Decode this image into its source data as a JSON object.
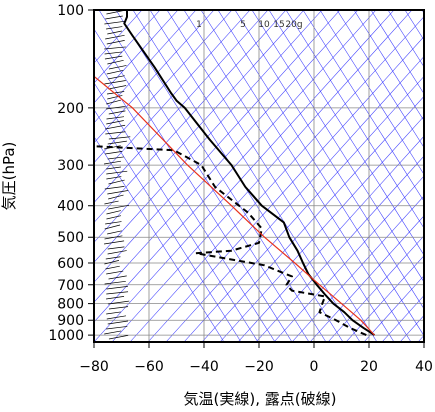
{
  "chart_data": {
    "type": "line",
    "title": "",
    "xlabel": "気温(実線), 露点(破線)",
    "ylabel": "気圧(hPa)",
    "xlim": [
      -80,
      40
    ],
    "ylim": [
      1050,
      100
    ],
    "y_scale": "log",
    "x_ticks": [
      -80,
      -60,
      -40,
      -20,
      0,
      20,
      40
    ],
    "x_tick_labels": [
      "−80",
      "−60",
      "−40",
      "−20",
      "0",
      "20",
      "40"
    ],
    "y_ticks": [
      100,
      200,
      300,
      400,
      500,
      600,
      700,
      800,
      900,
      1000
    ],
    "y_tick_labels": [
      "100",
      "200",
      "300",
      "400",
      "500",
      "600",
      "700",
      "800",
      "900",
      "1000"
    ],
    "mixing_ratio_labels": [
      "1",
      "5",
      "10",
      "15",
      "20g"
    ],
    "colors": {
      "temperature": "#000000",
      "dewpoint": "#000000",
      "parcel": "#e8331e",
      "skewt_lines": "#3c3cff",
      "grid": "#888888"
    },
    "series": [
      {
        "style": "solid",
        "color": "#000000",
        "points": [
          [
            22,
            1000
          ],
          [
            18,
            950
          ],
          [
            14,
            900
          ],
          [
            11,
            850
          ],
          [
            7,
            800
          ],
          [
            4,
            750
          ],
          [
            1,
            700
          ],
          [
            -2,
            650
          ],
          [
            -4,
            600
          ],
          [
            -6,
            550
          ],
          [
            -9,
            500
          ],
          [
            -11,
            450
          ],
          [
            -19,
            400
          ],
          [
            -25,
            350
          ],
          [
            -30,
            300
          ],
          [
            -38,
            250
          ],
          [
            -47,
            200
          ],
          [
            -50,
            190
          ],
          [
            -52,
            180
          ],
          [
            -58,
            150
          ],
          [
            -66,
            120
          ],
          [
            -69,
            110
          ],
          [
            -68,
            105
          ],
          [
            -68,
            100
          ]
        ]
      },
      {
        "style": "dashed",
        "color": "#000000",
        "points": [
          [
            19,
            1000
          ],
          [
            13,
            950
          ],
          [
            8,
            900
          ],
          [
            2,
            850
          ],
          [
            3,
            800
          ],
          [
            4,
            760
          ],
          [
            -8,
            730
          ],
          [
            -10,
            700
          ],
          [
            -8,
            660
          ],
          [
            -12,
            640
          ],
          [
            -18,
            610
          ],
          [
            -43,
            560
          ],
          [
            -30,
            550
          ],
          [
            -20,
            520
          ],
          [
            -19,
            470
          ],
          [
            -24,
            420
          ],
          [
            -36,
            350
          ],
          [
            -41,
            300
          ],
          [
            -51,
            270
          ],
          [
            -90,
            260
          ]
        ]
      },
      {
        "style": "solid",
        "color": "#e8331e",
        "points": [
          [
            22,
            1000
          ],
          [
            17,
            900
          ],
          [
            10,
            800
          ],
          [
            2,
            700
          ],
          [
            -7,
            600
          ],
          [
            -18,
            500
          ],
          [
            -30,
            400
          ],
          [
            -46,
            300
          ],
          [
            -66,
            200
          ],
          [
            -80,
            160
          ]
        ]
      }
    ],
    "wind_barbs_present": true
  }
}
